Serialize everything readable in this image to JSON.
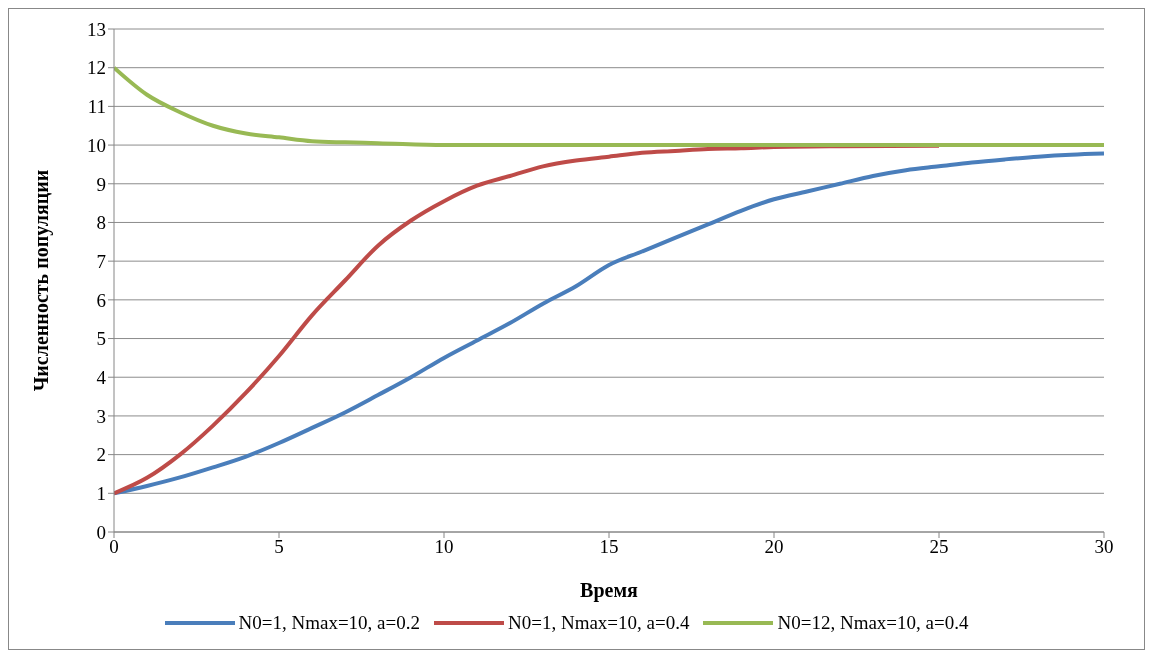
{
  "chart_data": {
    "type": "line",
    "xlabel": "Время",
    "ylabel": "Численность  популяции",
    "xlim": [
      0,
      30
    ],
    "xticks": [
      0,
      5,
      10,
      15,
      20,
      25,
      30
    ],
    "ylim": [
      0,
      13
    ],
    "yticks": [
      0,
      1,
      2,
      3,
      4,
      5,
      6,
      7,
      8,
      9,
      10,
      11,
      12,
      13
    ],
    "grid": "y",
    "legend": "bottom",
    "marker": "none",
    "line_style": "solid",
    "series": [
      {
        "name": "N0=1, Nmax=10, a=0.2",
        "color": "#4a7ebb",
        "x": [
          0,
          1,
          2,
          3,
          4,
          5,
          6,
          7,
          8,
          9,
          10,
          11,
          12,
          13,
          14,
          15,
          16,
          17,
          18,
          19,
          20,
          21,
          22,
          23,
          24,
          25,
          26,
          27,
          28,
          29,
          30
        ],
        "values": [
          1,
          1.19,
          1.41,
          1.67,
          1.95,
          2.3,
          2.69,
          3.09,
          3.54,
          4.0,
          4.5,
          4.95,
          5.4,
          5.9,
          6.35,
          6.9,
          7.25,
          7.6,
          7.95,
          8.3,
          8.6,
          8.8,
          9.0,
          9.2,
          9.35,
          9.45,
          9.55,
          9.63,
          9.7,
          9.75,
          9.78
        ]
      },
      {
        "name": "N0=1, Nmax=10, a=0.4",
        "color": "#be4b48",
        "x": [
          0,
          1,
          2,
          3,
          4,
          5,
          6,
          7,
          8,
          9,
          10,
          11,
          12,
          13,
          14,
          15,
          16,
          17,
          18,
          19,
          20,
          22,
          25
        ],
        "values": [
          1,
          1.4,
          2.0,
          2.75,
          3.6,
          4.55,
          5.6,
          6.5,
          7.4,
          8.05,
          8.55,
          8.95,
          9.2,
          9.45,
          9.6,
          9.7,
          9.8,
          9.85,
          9.9,
          9.92,
          9.95,
          9.97,
          9.98
        ]
      },
      {
        "name": "N0=12, Nmax=10, a=0.4",
        "color": "#98b954",
        "x": [
          0,
          1,
          2,
          3,
          4,
          5,
          6,
          7,
          8,
          10,
          15,
          20,
          25,
          30
        ],
        "values": [
          12,
          11.3,
          10.85,
          10.5,
          10.3,
          10.2,
          10.1,
          10.07,
          10.05,
          10.0,
          10,
          10,
          10,
          10
        ]
      }
    ]
  }
}
